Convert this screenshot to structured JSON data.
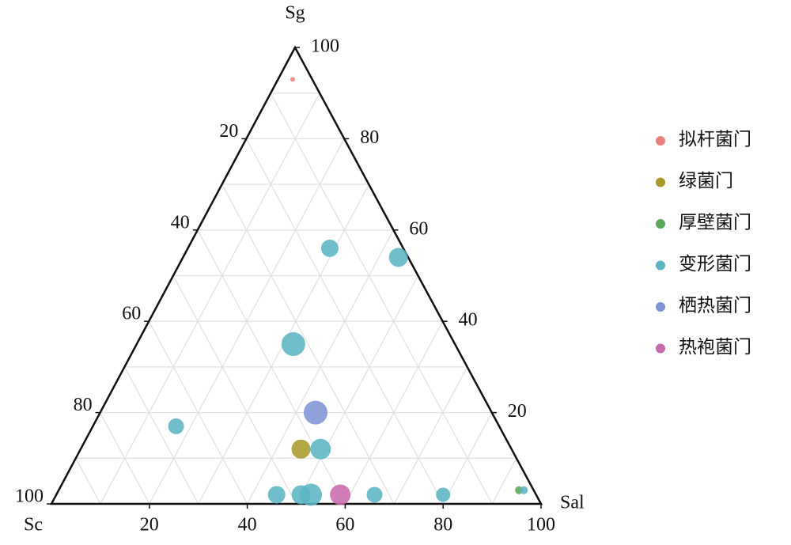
{
  "chart_data": {
    "type": "ternary",
    "axes": {
      "bottom": "Sal",
      "left": "Sc",
      "top": "Sg"
    },
    "sal_ticks": [
      20,
      40,
      60,
      80,
      100
    ],
    "sg_ticks": [
      20,
      40,
      60,
      80,
      100
    ],
    "sc_ticks": [
      20,
      40,
      60,
      80,
      100
    ],
    "grid": [
      10,
      20,
      30,
      40,
      50,
      60,
      70,
      80,
      90
    ],
    "series": [
      {
        "name": "拟杆菌门",
        "color": "#e8837a",
        "sg": [
          93
        ],
        "sal": [
          3
        ],
        "sc": [
          4
        ],
        "size": [
          3
        ]
      },
      {
        "name": "绿菌门",
        "color": "#a89a2a",
        "sg": [
          12
        ],
        "sal": [
          45
        ],
        "sc": [
          43
        ],
        "size": [
          12
        ]
      },
      {
        "name": "厚壁菌门",
        "color": "#5aa85a",
        "sg": [
          3
        ],
        "sal": [
          94
        ],
        "sc": [
          3
        ],
        "size": [
          5
        ]
      },
      {
        "name": "变形菌门",
        "color": "#5bb5c3",
        "sg": [
          56,
          54,
          35,
          17,
          12,
          2,
          2,
          2,
          2,
          2,
          3
        ],
        "sal": [
          29,
          44,
          32,
          17,
          49,
          45,
          50,
          52,
          65,
          79,
          95
        ],
        "sc": [
          15,
          2,
          33,
          66,
          39,
          53,
          48,
          46,
          33,
          19,
          2
        ],
        "size": [
          11,
          12,
          15,
          10,
          13,
          11,
          12,
          14,
          10,
          9,
          5
        ]
      },
      {
        "name": "栖热菌门",
        "color": "#8093d6",
        "sg": [
          20
        ],
        "sal": [
          44
        ],
        "sc": [
          36
        ],
        "size": [
          15
        ]
      },
      {
        "name": "热袍菌门",
        "color": "#c96aad",
        "sg": [
          2
        ],
        "sal": [
          58
        ],
        "sc": [
          40
        ],
        "size": [
          13
        ]
      }
    ]
  }
}
